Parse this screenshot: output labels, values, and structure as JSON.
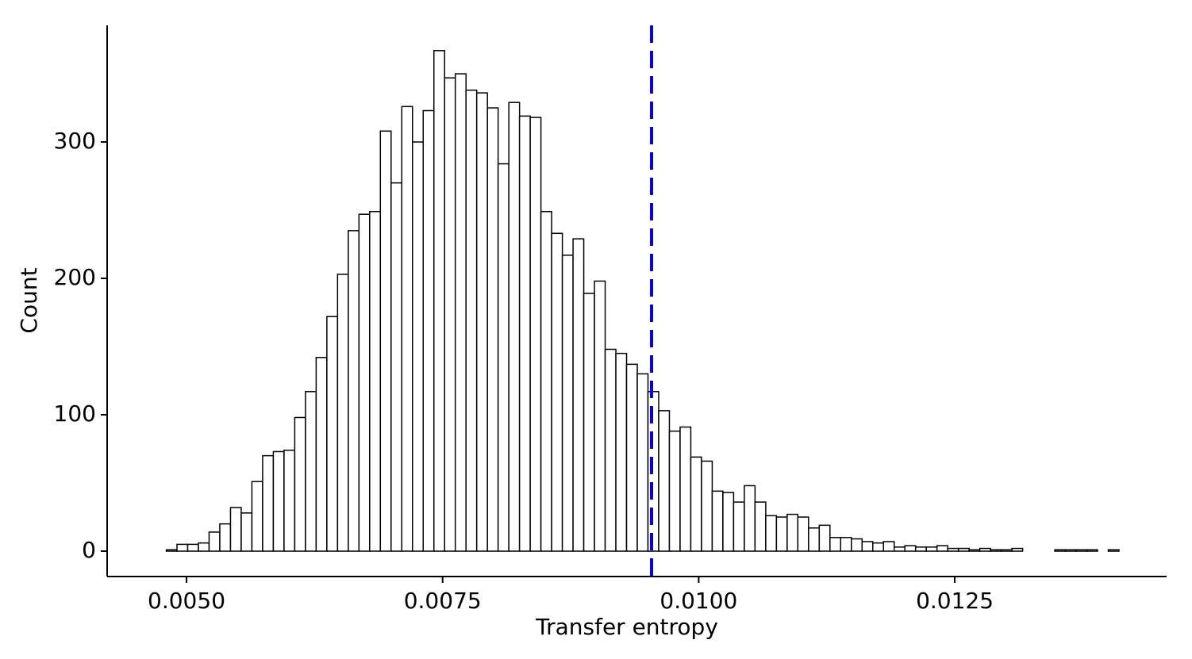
{
  "chart_data": {
    "type": "histogram",
    "x_label": "Transfer entropy",
    "y_label": "Count",
    "bins": [
      0.004698,
      0.0048025,
      0.004907,
      0.0050115,
      0.005116,
      0.0052205,
      0.005325,
      0.0054295,
      0.005534,
      0.0056385,
      0.005743,
      0.0058475,
      0.005952,
      0.0060565,
      0.006161,
      0.0062655,
      0.00637,
      0.0064745,
      0.006579,
      0.0066835,
      0.006788,
      0.0068925,
      0.006997,
      0.0071015,
      0.007206,
      0.0073105,
      0.007415,
      0.0075195,
      0.007624,
      0.0077285,
      0.007833,
      0.0079375,
      0.008042,
      0.0081465,
      0.008251,
      0.0083555,
      0.00846,
      0.0085645,
      0.008669,
      0.0087735,
      0.008878,
      0.0089825,
      0.009087,
      0.0091915,
      0.009296,
      0.0094005,
      0.009505,
      0.0096095,
      0.009714,
      0.0098185,
      0.009923,
      0.0100275,
      0.010132,
      0.0102365,
      0.010341,
      0.0104455,
      0.01055,
      0.0106545,
      0.010759,
      0.0108635,
      0.010968,
      0.0110725,
      0.011177,
      0.0112815,
      0.011386,
      0.0114905,
      0.011595,
      0.0116995,
      0.011804,
      0.0119085,
      0.012013,
      0.0121175,
      0.012222,
      0.0123265,
      0.012431,
      0.0125355,
      0.01264,
      0.0127445,
      0.012849,
      0.0129535,
      0.013058,
      0.0131625,
      0.013267,
      0.0133715,
      0.013476,
      0.0135805,
      0.013685,
      0.0137895,
      0.013894,
      0.0139985,
      0.014103
    ],
    "values": [
      0,
      1,
      5,
      5,
      6,
      14,
      20,
      32,
      28,
      51,
      70,
      73,
      74,
      98,
      117,
      142,
      172,
      203,
      235,
      247,
      249,
      308,
      270,
      326,
      300,
      323,
      367,
      347,
      350,
      338,
      336,
      325,
      284,
      329,
      319,
      318,
      249,
      233,
      217,
      229,
      189,
      198,
      148,
      145,
      137,
      130,
      117,
      103,
      88,
      91,
      69,
      66,
      44,
      43,
      36,
      48,
      36,
      26,
      25,
      27,
      25,
      17,
      19,
      10,
      10,
      9,
      7,
      6,
      7,
      3,
      4,
      3,
      3,
      4,
      2,
      2,
      1,
      2,
      1,
      1,
      2,
      0,
      0,
      0,
      1,
      1,
      1,
      1,
      0,
      1
    ],
    "color": "#ffffff",
    "edge_color": "#000000",
    "vline": {
      "value": 0.00954,
      "color": "#0000ee"
    },
    "xlim": [
      0.004225,
      0.014568
    ],
    "ylim": [
      -18.6,
      385.5
    ],
    "xticks": [
      {
        "value": 0.005,
        "label": "0.0050"
      },
      {
        "value": 0.0075,
        "label": "0.0075"
      },
      {
        "value": 0.01,
        "label": "0.0100"
      },
      {
        "value": 0.0125,
        "label": "0.0125"
      }
    ],
    "yticks": [
      0,
      100,
      200,
      300
    ]
  }
}
